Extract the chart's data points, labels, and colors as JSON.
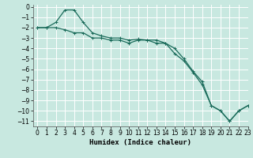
{
  "xlabel": "Humidex (Indice chaleur)",
  "background_color": "#c8e8e0",
  "grid_color": "#ffffff",
  "line_color": "#1a6b5a",
  "xlim": [
    -0.5,
    23
  ],
  "ylim": [
    -11.5,
    0.2
  ],
  "xticks": [
    0,
    1,
    2,
    3,
    4,
    5,
    6,
    7,
    8,
    9,
    10,
    11,
    12,
    13,
    14,
    15,
    16,
    17,
    18,
    19,
    20,
    21,
    22,
    23
  ],
  "yticks": [
    0,
    -1,
    -2,
    -3,
    -4,
    -5,
    -6,
    -7,
    -8,
    -9,
    -10,
    -11
  ],
  "line1_x": [
    0,
    1,
    2,
    3,
    4,
    5,
    6,
    7,
    8,
    9,
    10,
    11,
    12,
    13,
    14,
    15,
    16,
    17,
    18,
    19,
    20,
    21,
    22,
    23
  ],
  "line1_y": [
    -2.0,
    -2.0,
    -1.5,
    -0.3,
    -0.3,
    -1.5,
    -2.5,
    -2.8,
    -3.0,
    -3.0,
    -3.2,
    -3.1,
    -3.2,
    -3.2,
    -3.5,
    -4.0,
    -5.0,
    -6.2,
    -7.2,
    -9.5,
    -10.0,
    -11.0,
    -10.0,
    -9.5
  ],
  "line2_x": [
    0,
    1,
    2,
    3,
    4,
    5,
    6,
    7,
    8,
    9,
    10,
    11,
    12,
    13,
    14,
    15,
    16,
    17,
    18,
    19,
    20,
    21,
    22,
    23
  ],
  "line2_y": [
    -2.0,
    -2.0,
    -2.0,
    -2.2,
    -2.5,
    -2.5,
    -3.0,
    -3.0,
    -3.2,
    -3.2,
    -3.5,
    -3.2,
    -3.2,
    -3.5,
    -3.5,
    -4.5,
    -5.2,
    -6.3,
    -7.5,
    -9.5,
    -10.0,
    -11.0,
    -10.0,
    -9.5
  ],
  "font_size_tick": 5.5,
  "font_size_label": 6.5
}
